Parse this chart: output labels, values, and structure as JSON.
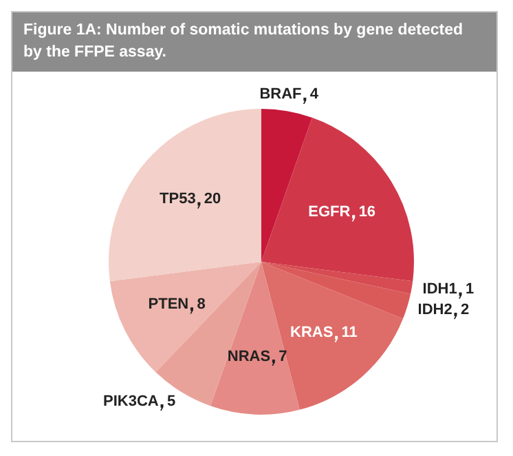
{
  "chart_data": {
    "type": "pie",
    "title": "Figure 1A: Number of somatic mutations by gene detected by the FFPE assay.",
    "categories": [
      "BRAF",
      "EGFR",
      "IDH1",
      "IDH2",
      "KRAS",
      "NRAS",
      "PIK3CA",
      "PTEN",
      "TP53"
    ],
    "values": [
      4,
      16,
      1,
      2,
      11,
      7,
      5,
      8,
      20
    ],
    "colors": [
      "#c8183a",
      "#d0384a",
      "#d64c52",
      "#da5a5a",
      "#de6c68",
      "#e58a86",
      "#e9a29a",
      "#eeb6ae",
      "#f3d0c9"
    ],
    "data_labels": true,
    "legend": false
  }
}
